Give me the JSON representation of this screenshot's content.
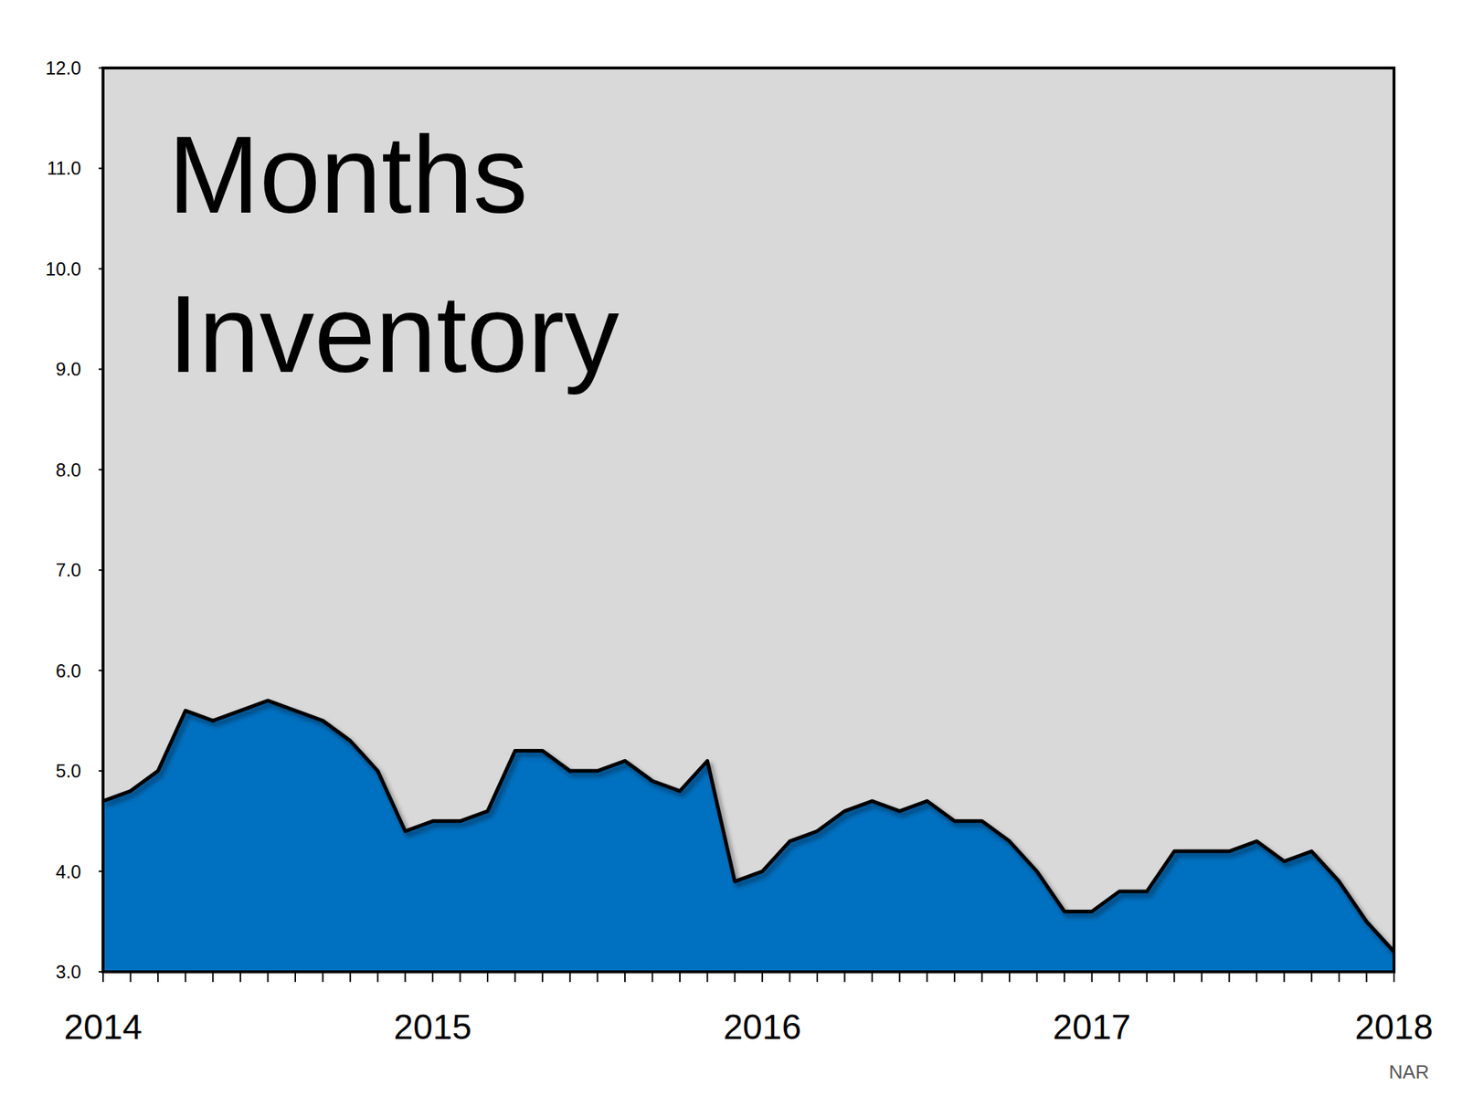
{
  "chart_data": {
    "type": "area",
    "title": "Months Inventory",
    "source": "NAR",
    "categories": [
      "2014",
      null,
      null,
      null,
      null,
      null,
      null,
      null,
      null,
      null,
      null,
      null,
      "2015",
      null,
      null,
      null,
      null,
      null,
      null,
      null,
      null,
      null,
      null,
      null,
      "2016",
      null,
      null,
      null,
      null,
      null,
      null,
      null,
      null,
      null,
      null,
      null,
      "2017",
      null,
      null,
      null,
      null,
      null,
      null,
      null,
      null,
      null,
      null,
      "2018"
    ],
    "values": [
      4.7,
      4.8,
      5.0,
      5.6,
      5.5,
      5.6,
      5.7,
      5.6,
      5.5,
      5.3,
      5.0,
      4.4,
      4.5,
      4.5,
      4.6,
      5.2,
      5.2,
      5.0,
      5.0,
      5.1,
      4.9,
      4.8,
      5.1,
      3.9,
      4.0,
      4.3,
      4.4,
      4.6,
      4.7,
      4.6,
      4.7,
      4.5,
      4.5,
      4.3,
      4.0,
      3.6,
      3.6,
      3.8,
      3.8,
      4.2,
      4.2,
      4.2,
      4.3,
      4.1,
      4.2,
      3.9,
      3.5,
      3.2
    ],
    "color": "#0070c0",
    "ylim": [
      3,
      12
    ],
    "yticks": [
      {
        "value": 3,
        "label": "3.0"
      },
      {
        "value": 4,
        "label": "4.0"
      },
      {
        "value": 5,
        "label": "5.0"
      },
      {
        "value": 6,
        "label": "6.0"
      },
      {
        "value": 7,
        "label": "7.0"
      },
      {
        "value": 8,
        "label": "8.0"
      },
      {
        "value": 9,
        "label": "9.0"
      },
      {
        "value": 10,
        "label": "10.0"
      },
      {
        "value": 11,
        "label": "11.0"
      },
      {
        "value": 12,
        "label": "12.0"
      }
    ],
    "grid": false
  }
}
